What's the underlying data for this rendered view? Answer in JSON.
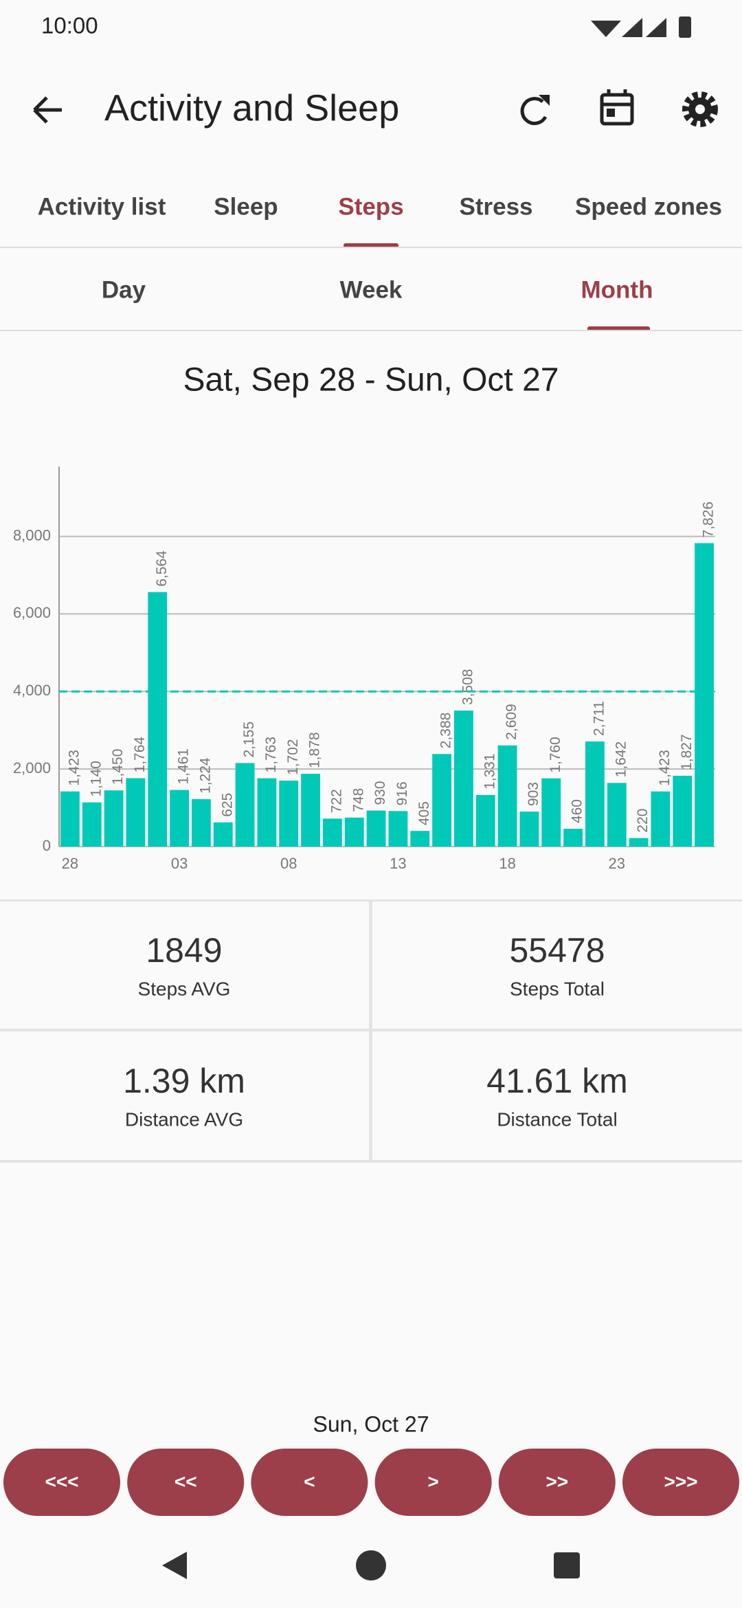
{
  "status_bar": {
    "time": "10:00"
  },
  "app_bar": {
    "title": "Activity and Sleep"
  },
  "tabs": [
    "Activity list",
    "Sleep",
    "Steps",
    "Stress",
    "Speed zones"
  ],
  "period_tabs": [
    "Day",
    "Week",
    "Month"
  ],
  "date_range": "Sat, Sep 28 - Sun, Oct 27",
  "chart_data": {
    "type": "bar",
    "categories": [
      "28",
      null,
      null,
      null,
      null,
      "03",
      null,
      null,
      null,
      null,
      "08",
      null,
      null,
      null,
      null,
      "13",
      null,
      null,
      null,
      null,
      "18",
      null,
      null,
      null,
      null,
      "23",
      null,
      null,
      null,
      null
    ],
    "values": [
      1423,
      1140,
      1450,
      1764,
      6564,
      1461,
      1224,
      625,
      2155,
      1763,
      1702,
      1878,
      722,
      748,
      930,
      916,
      405,
      2388,
      3508,
      1331,
      2609,
      903,
      1760,
      460,
      2711,
      1642,
      220,
      1423,
      1827,
      7826
    ],
    "value_labels": [
      "1,423",
      "1,140",
      "1,450",
      "1,764",
      "6,564",
      "1,461",
      "1,224",
      "625",
      "2,155",
      "1,763",
      "1,702",
      "1,878",
      "722",
      "748",
      "930",
      "916",
      "405",
      "2,388",
      "3,508",
      "1,331",
      "2,609",
      "903",
      "1,760",
      "460",
      "2,711",
      "1,642",
      "220",
      "1,423",
      "1,827",
      "7,826"
    ],
    "color": "#00c9b7",
    "ylim": [
      0,
      9800
    ],
    "yticks": [
      0,
      {
        "value": 2000,
        "label": "2,000"
      },
      {
        "value": 4000,
        "label": "4,000"
      },
      {
        "value": 6000,
        "label": "6,000"
      },
      {
        "value": 8000,
        "label": "8,000"
      }
    ],
    "grid": true,
    "reference_line": {
      "value": 4000,
      "color": "#00c9b7"
    }
  },
  "stats": [
    {
      "value": "1849",
      "label": "Steps AVG"
    },
    {
      "value": "55478",
      "label": "Steps Total"
    },
    {
      "value": "1.39 km",
      "label": "Distance AVG"
    },
    {
      "value": "41.61 km",
      "label": "Distance Total"
    }
  ],
  "selected_date": "Sun, Oct 27",
  "nav_buttons": [
    "<<<",
    "<<",
    "<",
    ">",
    ">>",
    ">>>"
  ]
}
